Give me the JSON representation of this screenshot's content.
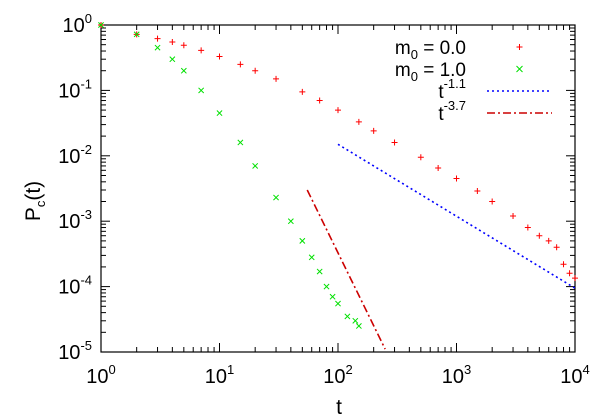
{
  "chart_data": {
    "type": "scatter",
    "xlabel": "t",
    "ylabel": "P",
    "ylabel_sub": "c",
    "ylabel_tail": "(t)",
    "xscale": "log",
    "yscale": "log",
    "xlim": [
      1,
      10000
    ],
    "ylim": [
      1e-05,
      1
    ],
    "grid": false,
    "legend_position": "top-right",
    "x_ticks": [
      {
        "value": 1,
        "base": "10",
        "exp": "0"
      },
      {
        "value": 10,
        "base": "10",
        "exp": "1"
      },
      {
        "value": 100,
        "base": "10",
        "exp": "2"
      },
      {
        "value": 1000,
        "base": "10",
        "exp": "3"
      },
      {
        "value": 10000,
        "base": "10",
        "exp": "4"
      }
    ],
    "y_ticks": [
      {
        "value": 1,
        "base": "10",
        "exp": "0"
      },
      {
        "value": 0.1,
        "base": "10",
        "exp": "-1"
      },
      {
        "value": 0.01,
        "base": "10",
        "exp": "-2"
      },
      {
        "value": 0.001,
        "base": "10",
        "exp": "-3"
      },
      {
        "value": 0.0001,
        "base": "10",
        "exp": "-4"
      },
      {
        "value": 1e-05,
        "base": "10",
        "exp": "-5"
      }
    ],
    "series": [
      {
        "name": "m",
        "name_sub": "0",
        "name_tail": " = 0.0",
        "marker": "plus",
        "color": "#ff0000",
        "points": [
          [
            1,
            1.0
          ],
          [
            2,
            0.72
          ],
          [
            3,
            0.62
          ],
          [
            4,
            0.55
          ],
          [
            5,
            0.49
          ],
          [
            7,
            0.41
          ],
          [
            10,
            0.33
          ],
          [
            15,
            0.25
          ],
          [
            20,
            0.2
          ],
          [
            30,
            0.15
          ],
          [
            50,
            0.095
          ],
          [
            70,
            0.07
          ],
          [
            100,
            0.05
          ],
          [
            150,
            0.033
          ],
          [
            200,
            0.024
          ],
          [
            300,
            0.016
          ],
          [
            500,
            0.0095
          ],
          [
            700,
            0.0065
          ],
          [
            1000,
            0.0045
          ],
          [
            1500,
            0.0029
          ],
          [
            2000,
            0.002
          ],
          [
            3000,
            0.0012
          ],
          [
            4000,
            0.0008
          ],
          [
            5000,
            0.0006
          ],
          [
            6000,
            0.0005
          ],
          [
            7000,
            0.0004
          ],
          [
            8000,
            0.00022
          ],
          [
            9000,
            0.00016
          ],
          [
            10000,
            0.000135
          ]
        ]
      },
      {
        "name": "m",
        "name_sub": "0",
        "name_tail": " = 1.0",
        "marker": "cross",
        "color": "#00e000",
        "points": [
          [
            1,
            1.0
          ],
          [
            2,
            0.72
          ],
          [
            3,
            0.45
          ],
          [
            4,
            0.3
          ],
          [
            5,
            0.2
          ],
          [
            7,
            0.1
          ],
          [
            10,
            0.045
          ],
          [
            15,
            0.016
          ],
          [
            20,
            0.007
          ],
          [
            30,
            0.0023
          ],
          [
            40,
            0.001
          ],
          [
            50,
            0.0005
          ],
          [
            60,
            0.00028
          ],
          [
            70,
            0.00017
          ],
          [
            80,
            0.0001
          ],
          [
            90,
            7e-05
          ],
          [
            100,
            5.5e-05
          ],
          [
            120,
            3.5e-05
          ],
          [
            140,
            3e-05
          ],
          [
            150,
            2.5e-05
          ]
        ]
      }
    ],
    "fits": [
      {
        "name": "t",
        "name_sup": "-1.1",
        "style": "dotted",
        "color": "#0000ff",
        "exponent": -1.1,
        "x_range": [
          100,
          10000
        ],
        "y_start": 0.015
      },
      {
        "name": "t",
        "name_sup": "-3.7",
        "style": "dashdot",
        "color": "#cc0000",
        "exponent": -3.7,
        "x_range": [
          55,
          250
        ],
        "y_start": 0.003
      }
    ]
  }
}
